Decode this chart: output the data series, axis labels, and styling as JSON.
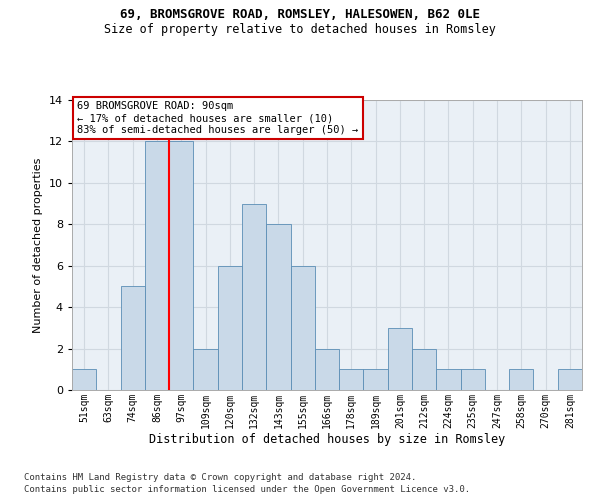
{
  "title1": "69, BROMSGROVE ROAD, ROMSLEY, HALESOWEN, B62 0LE",
  "title2": "Size of property relative to detached houses in Romsley",
  "xlabel": "Distribution of detached houses by size in Romsley",
  "ylabel": "Number of detached properties",
  "bins": [
    "51sqm",
    "63sqm",
    "74sqm",
    "86sqm",
    "97sqm",
    "109sqm",
    "120sqm",
    "132sqm",
    "143sqm",
    "155sqm",
    "166sqm",
    "178sqm",
    "189sqm",
    "201sqm",
    "212sqm",
    "224sqm",
    "235sqm",
    "247sqm",
    "258sqm",
    "270sqm",
    "281sqm"
  ],
  "values": [
    1,
    0,
    5,
    12,
    12,
    2,
    6,
    9,
    8,
    6,
    2,
    1,
    1,
    3,
    2,
    1,
    1,
    0,
    1,
    0,
    1
  ],
  "bar_color": "#c9d9e8",
  "bar_edge_color": "#5a8db5",
  "red_line_x": 3.5,
  "annotation_line1": "69 BROMSGROVE ROAD: 90sqm",
  "annotation_line2": "← 17% of detached houses are smaller (10)",
  "annotation_line3": "83% of semi-detached houses are larger (50) →",
  "annotation_box_color": "#ffffff",
  "annotation_box_edge": "#cc0000",
  "ylim": [
    0,
    14
  ],
  "yticks": [
    0,
    2,
    4,
    6,
    8,
    10,
    12,
    14
  ],
  "grid_color": "#d0d8e0",
  "footnote1": "Contains HM Land Registry data © Crown copyright and database right 2024.",
  "footnote2": "Contains public sector information licensed under the Open Government Licence v3.0.",
  "bg_color": "#eaf0f6"
}
